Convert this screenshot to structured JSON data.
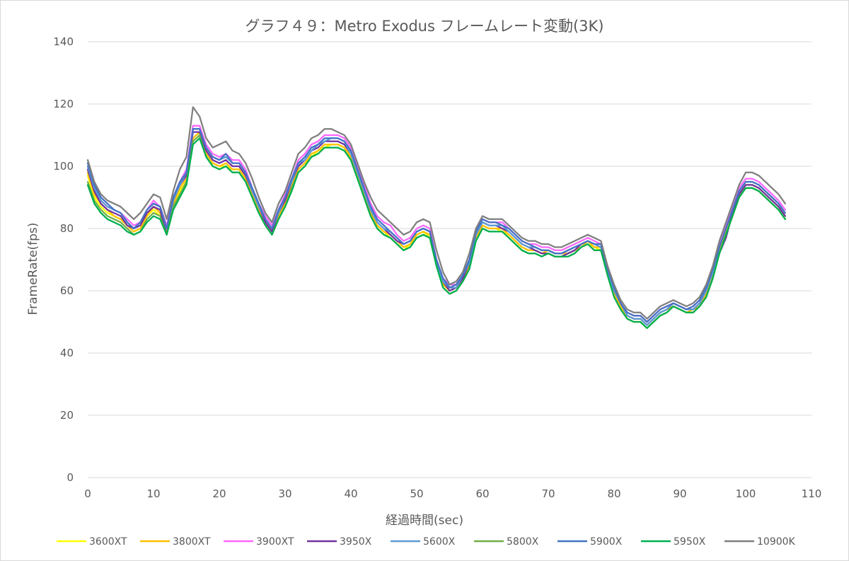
{
  "chart_data": {
    "type": "line",
    "title": "グラフ４９：Metro Exodus フレームレート変動(3K)",
    "xlabel": "経過時間(sec)",
    "ylabel": "FrameRate(fps)",
    "xlim": [
      0,
      110
    ],
    "ylim": [
      0,
      140
    ],
    "xticks": [
      0,
      10,
      20,
      30,
      40,
      50,
      60,
      70,
      80,
      90,
      100,
      110
    ],
    "yticks": [
      0,
      20,
      40,
      60,
      80,
      100,
      120,
      140
    ],
    "grid": "horizontal",
    "legend_position": "bottom",
    "x": [
      0,
      1,
      2,
      3,
      4,
      5,
      6,
      7,
      8,
      9,
      10,
      11,
      12,
      13,
      14,
      15,
      16,
      17,
      18,
      19,
      20,
      21,
      22,
      23,
      24,
      25,
      26,
      27,
      28,
      29,
      30,
      31,
      32,
      33,
      34,
      35,
      36,
      37,
      38,
      39,
      40,
      41,
      42,
      43,
      44,
      45,
      46,
      47,
      48,
      49,
      50,
      51,
      52,
      53,
      54,
      55,
      56,
      57,
      58,
      59,
      60,
      61,
      62,
      63,
      64,
      65,
      66,
      67,
      68,
      69,
      70,
      71,
      72,
      73,
      74,
      75,
      76,
      77,
      78,
      79,
      80,
      81,
      82,
      83,
      84,
      85,
      86,
      87,
      88,
      89,
      90,
      91,
      92,
      93,
      94,
      95,
      96,
      97,
      98,
      99,
      100,
      101,
      102,
      103,
      104,
      105,
      106
    ],
    "series": [
      {
        "name": "3600XT",
        "color": "#ffff00",
        "values": [
          97,
          90,
          87,
          85,
          84,
          83,
          81,
          79,
          80,
          84,
          86,
          84,
          79,
          87,
          92,
          95,
          108,
          110,
          104,
          101,
          100,
          100,
          99,
          99,
          96,
          91,
          86,
          82,
          79,
          84,
          88,
          93,
          99,
          101,
          103,
          105,
          106,
          107,
          107,
          106,
          103,
          97,
          91,
          85,
          81,
          79,
          77,
          75,
          73,
          75,
          78,
          79,
          77,
          68,
          62,
          60,
          61,
          64,
          68,
          77,
          81,
          80,
          80,
          79,
          78,
          76,
          74,
          73,
          73,
          72,
          72,
          71,
          71,
          72,
          73,
          74,
          75,
          74,
          73,
          66,
          59,
          55,
          51,
          50,
          50,
          48,
          50,
          52,
          53,
          55,
          54,
          53,
          53,
          55,
          58,
          64,
          72,
          78,
          84,
          90,
          93,
          93,
          92,
          90,
          88,
          86,
          83
        ]
      },
      {
        "name": "3800XT",
        "color": "#ffc000",
        "values": [
          98,
          91,
          88,
          86,
          84,
          83,
          81,
          79,
          80,
          84,
          87,
          85,
          79,
          88,
          93,
          96,
          109,
          111,
          104,
          101,
          100,
          101,
          99,
          99,
          96,
          91,
          86,
          82,
          79,
          84,
          88,
          94,
          99,
          101,
          104,
          105,
          107,
          107,
          107,
          106,
          103,
          97,
          91,
          85,
          81,
          79,
          78,
          76,
          74,
          75,
          78,
          79,
          78,
          69,
          62,
          60,
          61,
          64,
          68,
          77,
          81,
          80,
          80,
          80,
          78,
          76,
          74,
          73,
          73,
          72,
          73,
          72,
          72,
          72,
          73,
          74,
          76,
          74,
          74,
          66,
          59,
          55,
          52,
          51,
          51,
          49,
          51,
          53,
          54,
          55,
          54,
          53,
          54,
          55,
          59,
          65,
          73,
          79,
          85,
          91,
          94,
          94,
          93,
          91,
          89,
          87,
          84
        ]
      },
      {
        "name": "3900XT",
        "color": "#ff66ff",
        "values": [
          100,
          93,
          89,
          87,
          86,
          85,
          83,
          81,
          82,
          86,
          89,
          87,
          81,
          90,
          95,
          99,
          113,
          113,
          107,
          104,
          103,
          104,
          102,
          102,
          99,
          93,
          88,
          84,
          81,
          86,
          91,
          96,
          102,
          104,
          107,
          108,
          110,
          110,
          110,
          109,
          106,
          100,
          94,
          88,
          84,
          82,
          81,
          78,
          76,
          77,
          80,
          81,
          80,
          70,
          64,
          62,
          62,
          65,
          70,
          79,
          83,
          82,
          82,
          82,
          80,
          78,
          76,
          75,
          75,
          74,
          74,
          73,
          73,
          74,
          75,
          76,
          77,
          76,
          75,
          67,
          61,
          56,
          53,
          52,
          52,
          50,
          52,
          54,
          55,
          56,
          55,
          54,
          55,
          57,
          61,
          67,
          75,
          81,
          87,
          93,
          96,
          96,
          95,
          93,
          91,
          89,
          86
        ]
      },
      {
        "name": "3950X",
        "color": "#7030a0",
        "values": [
          99,
          92,
          88,
          86,
          85,
          84,
          81,
          80,
          81,
          85,
          87,
          86,
          78,
          89,
          94,
          97,
          111,
          111,
          105,
          102,
          101,
          102,
          100,
          100,
          97,
          92,
          87,
          82,
          79,
          85,
          89,
          95,
          100,
          102,
          105,
          106,
          108,
          108,
          108,
          107,
          104,
          98,
          92,
          86,
          82,
          80,
          78,
          76,
          75,
          76,
          79,
          80,
          79,
          69,
          63,
          60,
          61,
          64,
          69,
          78,
          82,
          81,
          81,
          80,
          79,
          77,
          75,
          74,
          73,
          72,
          72,
          71,
          71,
          72,
          73,
          75,
          76,
          75,
          74,
          66,
          60,
          56,
          52,
          51,
          51,
          49,
          51,
          53,
          54,
          56,
          55,
          54,
          54,
          56,
          60,
          66,
          72,
          77,
          85,
          91,
          94,
          94,
          93,
          91,
          89,
          87,
          84
        ]
      },
      {
        "name": "5600X",
        "color": "#5b9bd5",
        "values": [
          100,
          93,
          89,
          87,
          86,
          85,
          82,
          80,
          82,
          86,
          88,
          87,
          80,
          89,
          94,
          98,
          112,
          112,
          106,
          103,
          102,
          103,
          101,
          101,
          98,
          92,
          87,
          83,
          80,
          85,
          90,
          95,
          101,
          102,
          105,
          107,
          108,
          109,
          109,
          108,
          104,
          98,
          92,
          86,
          82,
          80,
          79,
          77,
          75,
          76,
          79,
          80,
          79,
          69,
          63,
          61,
          61,
          65,
          69,
          78,
          82,
          81,
          81,
          81,
          79,
          77,
          75,
          74,
          74,
          73,
          73,
          72,
          72,
          73,
          74,
          75,
          76,
          75,
          74,
          66,
          60,
          56,
          52,
          51,
          51,
          49,
          51,
          53,
          54,
          56,
          55,
          54,
          54,
          56,
          60,
          66,
          74,
          80,
          86,
          92,
          95,
          95,
          94,
          92,
          90,
          88,
          85
        ]
      },
      {
        "name": "5800X",
        "color": "#70ad47",
        "values": [
          95,
          89,
          86,
          84,
          83,
          82,
          80,
          78,
          79,
          83,
          85,
          84,
          78,
          87,
          91,
          95,
          108,
          110,
          103,
          100,
          99,
          100,
          98,
          98,
          95,
          90,
          85,
          81,
          78,
          83,
          87,
          93,
          98,
          100,
          103,
          104,
          106,
          106,
          106,
          105,
          102,
          96,
          90,
          84,
          80,
          78,
          77,
          75,
          73,
          74,
          77,
          78,
          77,
          68,
          61,
          59,
          60,
          63,
          67,
          76,
          80,
          79,
          79,
          79,
          77,
          75,
          73,
          72,
          72,
          71,
          72,
          71,
          71,
          71,
          72,
          74,
          75,
          73,
          73,
          65,
          58,
          54,
          51,
          50,
          50,
          48,
          50,
          52,
          53,
          55,
          54,
          53,
          53,
          55,
          58,
          64,
          72,
          78,
          84,
          90,
          93,
          93,
          92,
          90,
          88,
          86,
          83
        ]
      },
      {
        "name": "5900X",
        "color": "#4472c4",
        "values": [
          101,
          94,
          90,
          88,
          86,
          85,
          82,
          80,
          82,
          86,
          88,
          87,
          80,
          90,
          95,
          98,
          112,
          112,
          106,
          103,
          102,
          104,
          101,
          101,
          98,
          93,
          88,
          83,
          80,
          86,
          90,
          96,
          101,
          103,
          106,
          107,
          109,
          109,
          109,
          108,
          105,
          99,
          93,
          87,
          83,
          81,
          79,
          77,
          75,
          76,
          79,
          80,
          79,
          70,
          64,
          61,
          62,
          65,
          70,
          79,
          83,
          82,
          82,
          81,
          80,
          78,
          76,
          75,
          74,
          73,
          73,
          72,
          72,
          73,
          74,
          75,
          76,
          75,
          75,
          67,
          61,
          56,
          53,
          52,
          52,
          50,
          52,
          54,
          55,
          56,
          55,
          54,
          55,
          57,
          61,
          67,
          74,
          80,
          86,
          92,
          95,
          95,
          94,
          92,
          90,
          88,
          85
        ]
      },
      {
        "name": "5950X",
        "color": "#00b050",
        "values": [
          94,
          88,
          85,
          83,
          82,
          81,
          79,
          78,
          79,
          82,
          84,
          83,
          78,
          86,
          90,
          94,
          107,
          109,
          103,
          100,
          99,
          100,
          98,
          98,
          95,
          90,
          85,
          81,
          78,
          83,
          87,
          92,
          98,
          100,
          103,
          104,
          106,
          106,
          106,
          105,
          102,
          96,
          90,
          84,
          80,
          78,
          77,
          75,
          73,
          74,
          77,
          78,
          77,
          68,
          61,
          59,
          60,
          63,
          67,
          76,
          80,
          79,
          79,
          79,
          77,
          75,
          73,
          72,
          72,
          71,
          72,
          71,
          71,
          71,
          72,
          74,
          75,
          73,
          73,
          65,
          58,
          54,
          51,
          50,
          50,
          48,
          50,
          52,
          53,
          55,
          54,
          53,
          53,
          55,
          58,
          64,
          72,
          78,
          84,
          90,
          93,
          93,
          92,
          90,
          88,
          86,
          83
        ]
      },
      {
        "name": "10900K",
        "color": "#7f7f7f",
        "values": [
          102,
          95,
          91,
          89,
          88,
          87,
          85,
          83,
          85,
          88,
          91,
          90,
          83,
          92,
          99,
          103,
          119,
          116,
          109,
          106,
          107,
          108,
          105,
          104,
          101,
          96,
          90,
          85,
          82,
          88,
          92,
          98,
          104,
          106,
          109,
          110,
          112,
          112,
          111,
          110,
          107,
          101,
          95,
          90,
          86,
          84,
          82,
          80,
          78,
          79,
          82,
          83,
          82,
          73,
          66,
          62,
          63,
          66,
          72,
          80,
          84,
          83,
          83,
          83,
          81,
          79,
          77,
          76,
          76,
          75,
          75,
          74,
          74,
          75,
          76,
          77,
          78,
          77,
          76,
          68,
          62,
          57,
          54,
          53,
          53,
          51,
          53,
          55,
          56,
          57,
          56,
          55,
          56,
          58,
          62,
          68,
          76,
          82,
          88,
          94,
          98,
          98,
          97,
          95,
          93,
          91,
          88
        ]
      }
    ]
  }
}
